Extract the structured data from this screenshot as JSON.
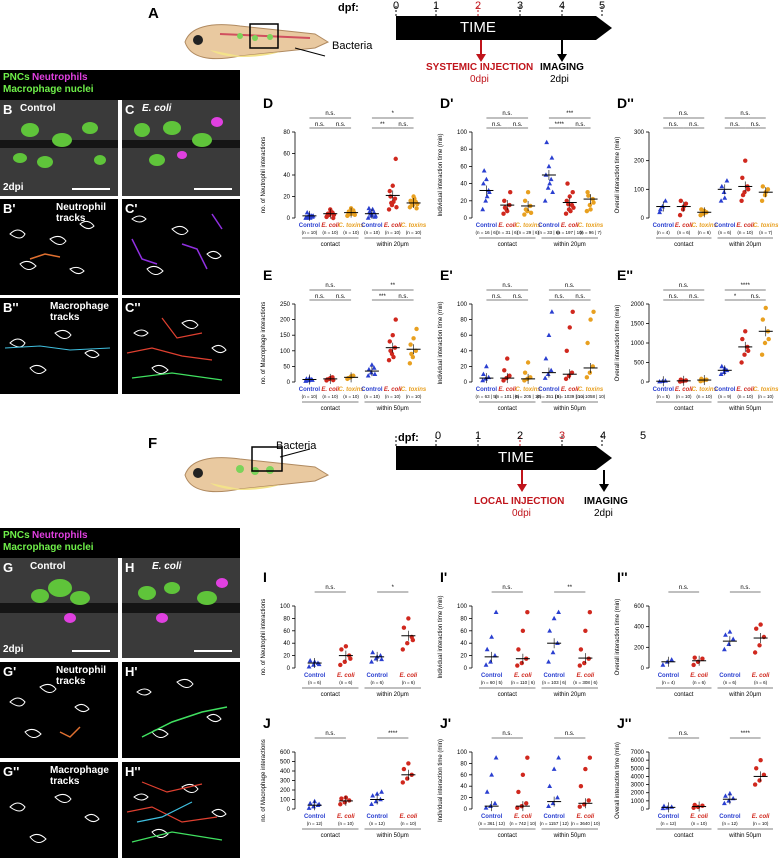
{
  "top": {
    "panel": "A",
    "bacteria": "Bacteria",
    "dpf": "dpf:",
    "days": [
      "0",
      "1",
      "2",
      "3",
      "4",
      "5"
    ],
    "time": "TIME",
    "injection": "SYSTEMIC INJECTION",
    "injection_dpi": "0dpi",
    "imaging": "IMAGING",
    "imaging_dpi": "2dpi",
    "colors": {
      "red": "#c0141b",
      "axis": "#000000"
    }
  },
  "bottom": {
    "panel": "F",
    "bacteria": "Bacteria",
    "dpf": "dpf:",
    "days": [
      "0",
      "1",
      "2",
      "3",
      "4",
      "5"
    ],
    "time": "TIME",
    "injection": "LOCAL INJECTION",
    "injection_dpi": "0dpi",
    "imaging": "IMAGING",
    "imaging_dpi": "2dpi"
  },
  "legend1": {
    "pncs": "PNCs",
    "neutrophils": "Neutrophils",
    "macrophage": "Macrophage nuclei"
  },
  "legend2": {
    "pncs": "PNCs",
    "neutrophils": "Neutrophils",
    "macrophage": "Macrophage nuclei"
  },
  "micro1": {
    "B": "B",
    "C": "C",
    "B1": "B'",
    "C1": "C'",
    "B2": "B''",
    "C2": "C''",
    "control": "Control",
    "ecoli": "E. coli",
    "dpi": "2dpi",
    "neut_tracks": "Neutrophil tracks",
    "mac_tracks": "Macrophage tracks"
  },
  "micro2": {
    "G": "G",
    "H": "H",
    "G1": "G'",
    "H1": "H'",
    "G2": "G''",
    "H2": "H''",
    "control": "Control",
    "ecoli": "E. coli",
    "dpi": "2dpi",
    "neut_tracks": "Neutrophil tracks",
    "mac_tracks": "Macrophage tracks"
  },
  "chart_data": [
    {
      "panel": "D",
      "type": "scatter",
      "ylabel": "no. of Neutrophil interactions",
      "ylim": [
        0,
        80
      ],
      "yticks": [
        0,
        20,
        40,
        60,
        80
      ],
      "categories": [
        "Control",
        "E. coli",
        "C. toxins",
        "Control",
        "E. coli",
        "C. toxins"
      ],
      "ns": [
        "(n = 10)",
        "(n = 10)",
        "(n = 10)",
        "(n = 10)",
        "(n = 10)",
        "(n = 10)"
      ],
      "groups": [
        "contact",
        "within 20μm"
      ],
      "sig_top": [
        "n.s.",
        "*"
      ],
      "sig_mid": [
        "n.s.",
        "n.s.",
        "**",
        "n.s."
      ],
      "means": [
        2,
        4,
        5,
        4,
        21,
        14
      ],
      "points": [
        [
          0,
          1,
          2,
          0,
          3,
          1,
          5,
          0,
          2,
          1
        ],
        [
          1,
          3,
          5,
          2,
          8,
          0,
          4,
          6,
          3,
          4
        ],
        [
          2,
          4,
          7,
          3,
          9,
          5,
          6,
          4,
          3,
          5
        ],
        [
          0,
          2,
          5,
          9,
          3,
          1,
          6,
          8,
          2,
          4
        ],
        [
          8,
          12,
          18,
          25,
          30,
          55,
          20,
          15,
          10,
          14
        ],
        [
          10,
          12,
          15,
          16,
          20,
          9,
          14,
          18,
          13,
          15
        ]
      ]
    },
    {
      "panel": "D'",
      "type": "scatter",
      "ylabel": "Individual interaction time (min)",
      "ylim": [
        0,
        100
      ],
      "yticks": [
        0,
        20,
        40,
        60,
        80,
        100
      ],
      "categories": [
        "Control",
        "E. coli",
        "C. toxins",
        "Control",
        "E. coli",
        "C. toxins"
      ],
      "ns": [
        "(n = 16 | 6)",
        "(n = 31 | 6)",
        "(n = 29 | 6)",
        "(n = 33 | 6)",
        "(n = 197 | 10)",
        "(n = 96 | 7)"
      ],
      "groups": [
        "contact",
        "within 20μm"
      ],
      "sig_top": [
        "n.s.",
        "***"
      ],
      "sig_mid": [
        "n.s.",
        "n.s.",
        "****",
        "n.s."
      ],
      "means": [
        32,
        15,
        14,
        50,
        18,
        22
      ],
      "points": [
        [
          10,
          20,
          32,
          40,
          45,
          30,
          55,
          25
        ],
        [
          5,
          10,
          15,
          20,
          8,
          30,
          12
        ],
        [
          4,
          8,
          14,
          20,
          30,
          6,
          10
        ],
        [
          20,
          35,
          45,
          50,
          60,
          70,
          88,
          40,
          30
        ],
        [
          5,
          10,
          15,
          20,
          25,
          30,
          40,
          8,
          12,
          16
        ],
        [
          8,
          15,
          22,
          30,
          10,
          18,
          26
        ]
      ]
    },
    {
      "panel": "D''",
      "type": "scatter",
      "ylabel": "Overall interaction time (min)",
      "ylim": [
        0,
        300
      ],
      "yticks": [
        0,
        100,
        200,
        300
      ],
      "categories": [
        "Control",
        "E. coli",
        "C. toxins",
        "Control",
        "E. coli",
        "C. toxins"
      ],
      "ns": [
        "(n = 4)",
        "(n = 6)",
        "(n = 6)",
        "(n = 6)",
        "(n = 10)",
        "(n = 7)"
      ],
      "groups": [
        "contact",
        "within 20μm"
      ],
      "sig_top": [
        "n.s.",
        "n.s."
      ],
      "sig_mid": [
        "n.s.",
        "n.s.",
        "n.s.",
        "n.s."
      ],
      "means": [
        40,
        40,
        20,
        100,
        110,
        90
      ],
      "points": [
        [
          20,
          40,
          60,
          30
        ],
        [
          10,
          30,
          50,
          60,
          40
        ],
        [
          10,
          15,
          20,
          30,
          25
        ],
        [
          60,
          90,
          130,
          110,
          70
        ],
        [
          60,
          90,
          110,
          140,
          200,
          100,
          80
        ],
        [
          60,
          80,
          100,
          110,
          90
        ]
      ]
    },
    {
      "panel": "E",
      "type": "scatter",
      "ylabel": "no. of Macrophage interactions",
      "ylim": [
        0,
        250
      ],
      "yticks": [
        0,
        50,
        100,
        150,
        200,
        250
      ],
      "categories": [
        "Control",
        "E. coli",
        "C. toxins",
        "Control",
        "E. coli",
        "C. toxins"
      ],
      "ns": [
        "(n = 10)",
        "(n = 10)",
        "(n = 10)",
        "(n = 10)",
        "(n = 10)",
        "(n = 10)"
      ],
      "groups": [
        "contact",
        "within 50μm"
      ],
      "sig_top": [
        "n.s.",
        "**"
      ],
      "sig_mid": [
        "n.s.",
        "n.s.",
        "***",
        "n.s."
      ],
      "means": [
        8,
        10,
        15,
        35,
        110,
        105
      ],
      "points": [
        [
          3,
          5,
          8,
          10,
          12,
          6
        ],
        [
          5,
          10,
          15,
          8,
          12,
          6
        ],
        [
          10,
          15,
          20,
          12,
          18
        ],
        [
          20,
          30,
          45,
          40,
          55,
          25
        ],
        [
          70,
          90,
          110,
          130,
          150,
          200,
          100,
          80
        ],
        [
          60,
          80,
          100,
          120,
          140,
          170,
          90
        ]
      ]
    },
    {
      "panel": "E'",
      "type": "scatter",
      "ylabel": "Individual interaction time (min)",
      "ylim": [
        0,
        100
      ],
      "yticks": [
        0,
        20,
        40,
        60,
        80,
        100
      ],
      "categories": [
        "Control",
        "E. coli",
        "C. toxins",
        "Control",
        "E. coli",
        "C. toxins"
      ],
      "ns": [
        "(n = 63 | 5)",
        "(n = 101 | 6)",
        "(n = 205 | 10)",
        "(n = 351 | 5)",
        "(n = 1039 | 10)",
        "(n = 1058 | 10)"
      ],
      "groups": [
        "contact",
        "within 50μm"
      ],
      "sig_top": [
        "n.s.",
        "n.s."
      ],
      "sig_mid": [
        "n.s.",
        "n.s.",
        "n.s.",
        "n.s."
      ],
      "means": [
        5,
        5,
        4,
        12,
        10,
        18
      ],
      "points": [
        [
          2,
          4,
          6,
          10,
          20
        ],
        [
          2,
          5,
          8,
          15,
          30
        ],
        [
          2,
          4,
          6,
          12,
          25
        ],
        [
          5,
          10,
          15,
          30,
          60,
          90
        ],
        [
          4,
          8,
          12,
          40,
          70,
          90
        ],
        [
          6,
          12,
          20,
          50,
          80,
          90
        ]
      ]
    },
    {
      "panel": "E''",
      "type": "scatter",
      "ylabel": "Overall interaction time (min)",
      "ylim": [
        0,
        2000
      ],
      "yticks": [
        0,
        500,
        1000,
        1500,
        2000
      ],
      "categories": [
        "Control",
        "E. coli",
        "C. toxins",
        "Control",
        "E. coli",
        "C. toxins"
      ],
      "ns": [
        "(n = 5)",
        "(n = 10)",
        "(n = 10)",
        "(n = 9)",
        "(n = 10)",
        "(n = 10)"
      ],
      "groups": [
        "contact",
        "within 50μm"
      ],
      "sig_top": [
        "n.s.",
        "****"
      ],
      "sig_mid": [
        "n.s.",
        "n.s.",
        "*",
        "n.s."
      ],
      "means": [
        20,
        30,
        50,
        300,
        900,
        1300
      ],
      "points": [
        [
          10,
          20,
          30
        ],
        [
          10,
          25,
          40,
          60
        ],
        [
          20,
          40,
          60,
          80
        ],
        [
          200,
          250,
          300,
          400,
          350
        ],
        [
          500,
          700,
          900,
          1100,
          1300,
          800
        ],
        [
          700,
          1000,
          1300,
          1600,
          1900,
          1100
        ]
      ]
    },
    {
      "panel": "I",
      "type": "scatter",
      "ylabel": "no. of Neutrophil interactions",
      "ylim": [
        0,
        100
      ],
      "yticks": [
        0,
        20,
        40,
        60,
        80,
        100
      ],
      "categories": [
        "Control",
        "E. coli",
        "Control",
        "E. coli"
      ],
      "ns": [
        "(n = 6)",
        "(n = 6)",
        "(n = 6)",
        "(n = 6)"
      ],
      "groups": [
        "contact",
        "within 20μm"
      ],
      "sig_top": [
        "n.s.",
        "*"
      ],
      "means": [
        8,
        20,
        18,
        52
      ],
      "points": [
        [
          2,
          5,
          8,
          12,
          10,
          6
        ],
        [
          5,
          10,
          20,
          30,
          35,
          15
        ],
        [
          10,
          15,
          20,
          25,
          18,
          14
        ],
        [
          30,
          40,
          50,
          65,
          80,
          45
        ]
      ]
    },
    {
      "panel": "I'",
      "type": "scatter",
      "ylabel": "Individual interaction time (min)",
      "ylim": [
        0,
        100
      ],
      "yticks": [
        0,
        20,
        40,
        60,
        80,
        100
      ],
      "categories": [
        "Control",
        "E. coli",
        "Control",
        "E. coli"
      ],
      "ns": [
        "(n = 60 | 5)",
        "(n = 110 | 6)",
        "(n = 103 | 6)",
        "(n = 308 | 6)"
      ],
      "groups": [
        "contact",
        "within 20μm"
      ],
      "sig_top": [
        "n.s.",
        "**"
      ],
      "means": [
        18,
        15,
        40,
        16
      ],
      "points": [
        [
          5,
          10,
          20,
          30,
          50,
          90
        ],
        [
          4,
          8,
          15,
          30,
          60,
          90
        ],
        [
          10,
          25,
          40,
          60,
          80,
          90
        ],
        [
          4,
          8,
          15,
          30,
          60,
          90
        ]
      ]
    },
    {
      "panel": "I''",
      "type": "scatter",
      "ylabel": "Overall interaction time (min)",
      "ylim": [
        0,
        600
      ],
      "yticks": [
        0,
        200,
        400,
        600
      ],
      "categories": [
        "Control",
        "E. coli",
        "Control",
        "E. coli"
      ],
      "ns": [
        "(n = 4)",
        "(n = 6)",
        "(n = 6)",
        "(n = 6)"
      ],
      "groups": [
        "contact",
        "within 20μm"
      ],
      "sig_top": [
        "n.s.",
        "n.s."
      ],
      "means": [
        60,
        70,
        260,
        290
      ],
      "points": [
        [
          30,
          60,
          80
        ],
        [
          30,
          60,
          90,
          100
        ],
        [
          180,
          230,
          280,
          320,
          350
        ],
        [
          150,
          220,
          300,
          380,
          420
        ]
      ]
    },
    {
      "panel": "J",
      "type": "scatter",
      "ylabel": "no. of Macrophage interactions",
      "ylim": [
        0,
        600
      ],
      "yticks": [
        0,
        100,
        200,
        300,
        400,
        500,
        600
      ],
      "categories": [
        "Control",
        "E. coli",
        "Control",
        "E. coli"
      ],
      "ns": [
        "(n = 12)",
        "(n = 10)",
        "(n = 12)",
        "(n = 10)"
      ],
      "groups": [
        "contact",
        "within 50μm"
      ],
      "sig_top": [
        "n.s.",
        "****"
      ],
      "means": [
        40,
        85,
        100,
        360
      ],
      "points": [
        [
          10,
          25,
          40,
          60,
          80,
          50
        ],
        [
          50,
          70,
          90,
          110,
          120
        ],
        [
          50,
          80,
          100,
          140,
          160,
          180
        ],
        [
          280,
          320,
          360,
          420,
          480
        ]
      ]
    },
    {
      "panel": "J'",
      "type": "scatter",
      "ylabel": "Individual interaction time (min)",
      "ylim": [
        0,
        100
      ],
      "yticks": [
        0,
        20,
        40,
        60,
        80,
        100
      ],
      "categories": [
        "Control",
        "E. coli",
        "Control",
        "E. coli"
      ],
      "ns": [
        "(n = 361 | 12)",
        "(n = 742 | 10)",
        "(n = 1157 | 12)",
        "(n = 3640 | 10)"
      ],
      "groups": [
        "contact",
        "within 50μm"
      ],
      "sig_top": [
        "n.s.",
        "n.s."
      ],
      "means": [
        5,
        5,
        13,
        10
      ],
      "points": [
        [
          2,
          5,
          10,
          30,
          60,
          90
        ],
        [
          2,
          5,
          10,
          30,
          60,
          90
        ],
        [
          5,
          10,
          20,
          40,
          70,
          90
        ],
        [
          4,
          8,
          15,
          40,
          70,
          90
        ]
      ]
    },
    {
      "panel": "J''",
      "type": "scatter",
      "ylabel": "Overall interaction time (min)",
      "ylim": [
        0,
        7000
      ],
      "yticks": [
        0,
        1000,
        2000,
        3000,
        4000,
        5000,
        6000,
        7000
      ],
      "categories": [
        "Control",
        "E. coli",
        "Control",
        "E. coli"
      ],
      "ns": [
        "(n = 12)",
        "(n = 10)",
        "(n = 12)",
        "(n = 10)"
      ],
      "groups": [
        "contact",
        "within 50μm"
      ],
      "sig_top": [
        "n.s.",
        "****"
      ],
      "means": [
        200,
        300,
        1200,
        4000
      ],
      "points": [
        [
          80,
          150,
          250,
          350
        ],
        [
          150,
          250,
          400,
          500
        ],
        [
          700,
          1000,
          1300,
          1600,
          1900
        ],
        [
          3000,
          3500,
          4200,
          5000,
          6000
        ]
      ]
    }
  ]
}
